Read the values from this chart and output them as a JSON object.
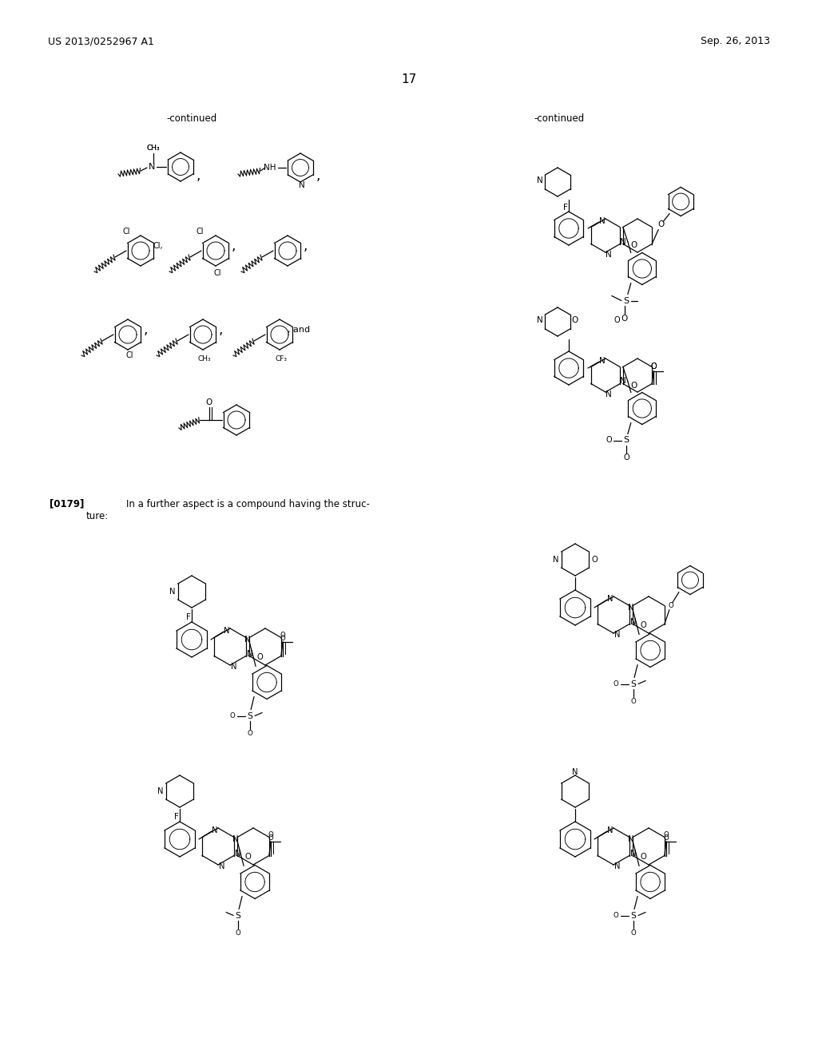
{
  "bg_color": "#ffffff",
  "header_left": "US 2013/0252967 A1",
  "header_right": "Sep. 26, 2013",
  "page_number": "17",
  "continued": "-continued",
  "para_ref": "[0179]",
  "para_text1": "In a further aspect is a compound having the struc-",
  "para_text2": "ture:"
}
